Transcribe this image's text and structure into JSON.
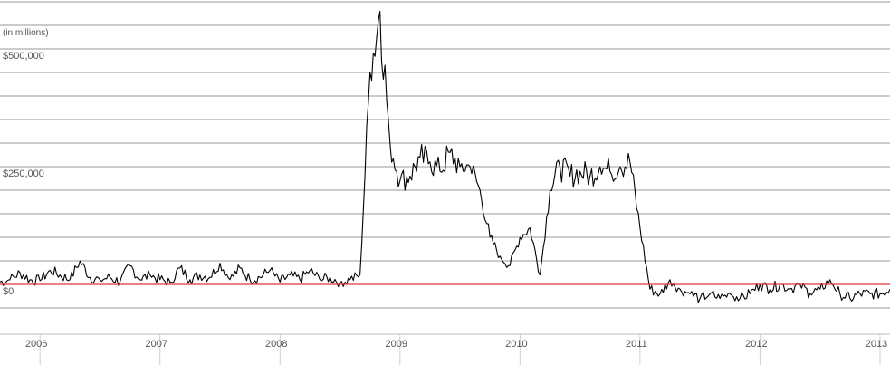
{
  "chart_data": {
    "type": "line",
    "title": "",
    "unit_note": "(in millions)",
    "xlabel": "",
    "ylabel": "",
    "x_range": [
      "2005-09",
      "2013-02"
    ],
    "ylim": [
      -100000,
      600000
    ],
    "x_ticks": [
      {
        "label": "2006",
        "x": "2006-01"
      },
      {
        "label": "2007",
        "x": "2007-01"
      },
      {
        "label": "2008",
        "x": "2008-01"
      },
      {
        "label": "2009",
        "x": "2009-01"
      },
      {
        "label": "2010",
        "x": "2010-01"
      },
      {
        "label": "2011",
        "x": "2011-01"
      },
      {
        "label": "2012",
        "x": "2012-01"
      },
      {
        "label": "2013",
        "x": "2013-01"
      }
    ],
    "y_ticks": [
      {
        "label": "$500,000",
        "value": 500000
      },
      {
        "label": "$250,000",
        "value": 250000
      },
      {
        "label": "$0",
        "value": 0
      }
    ],
    "gridlines": [
      -50000,
      0,
      50000,
      100000,
      150000,
      200000,
      250000,
      300000,
      350000,
      400000,
      450000,
      500000,
      550000,
      600000
    ],
    "zero_line_color": "#e0303a",
    "series_color": "#000000",
    "grid": true,
    "legend": "none",
    "series": [
      {
        "x": [
          "2005-09",
          "2005-10",
          "2005-11",
          "2005-12",
          "2006-01",
          "2006-02",
          "2006-03",
          "2006-04",
          "2006-05",
          "2006-06",
          "2006-07",
          "2006-08",
          "2006-09",
          "2006-10",
          "2006-11",
          "2006-12",
          "2007-01",
          "2007-02",
          "2007-03",
          "2007-04",
          "2007-05",
          "2007-06",
          "2007-07",
          "2007-08",
          "2007-09",
          "2007-10",
          "2007-11",
          "2007-12",
          "2008-01",
          "2008-02",
          "2008-03",
          "2008-04",
          "2008-05",
          "2008-06",
          "2008-07",
          "2008-08",
          "2008-09",
          "2008-10",
          "2008-11",
          "2008-12",
          "2009-01",
          "2009-02",
          "2009-03",
          "2009-04",
          "2009-05",
          "2009-06",
          "2009-07",
          "2009-08",
          "2009-09",
          "2009-10",
          "2009-11",
          "2009-12",
          "2010-01",
          "2010-02",
          "2010-03",
          "2010-04",
          "2010-05",
          "2010-06",
          "2010-07",
          "2010-08",
          "2010-09",
          "2010-10",
          "2010-11",
          "2010-12",
          "2011-01",
          "2011-02",
          "2011-03",
          "2011-04",
          "2011-05",
          "2011-06",
          "2011-07",
          "2011-08",
          "2011-09",
          "2011-10",
          "2011-11",
          "2011-12",
          "2012-01",
          "2012-02",
          "2012-03",
          "2012-04",
          "2012-05",
          "2012-06",
          "2012-07",
          "2012-08",
          "2012-09",
          "2012-10",
          "2012-11",
          "2012-12",
          "2013-01",
          "2013-02"
        ],
        "values": [
          5000,
          10000,
          25000,
          10000,
          8000,
          30000,
          20000,
          10000,
          50000,
          15000,
          10000,
          15000,
          5000,
          40000,
          10000,
          20000,
          10000,
          5000,
          35000,
          10000,
          20000,
          15000,
          45000,
          10000,
          35000,
          10000,
          15000,
          30000,
          5000,
          20000,
          10000,
          30000,
          10000,
          15000,
          5000,
          10000,
          20000,
          450000,
          580000,
          300000,
          220000,
          230000,
          270000,
          260000,
          240000,
          280000,
          250000,
          250000,
          200000,
          100000,
          60000,
          40000,
          100000,
          120000,
          20000,
          200000,
          250000,
          230000,
          240000,
          230000,
          250000,
          240000,
          250000,
          260000,
          120000,
          -10000,
          -20000,
          10000,
          -10000,
          -20000,
          -30000,
          -20000,
          -30000,
          -20000,
          -30000,
          -20000,
          0,
          -10000,
          0,
          -10000,
          0,
          -20000,
          -10000,
          10000,
          -20000,
          -30000,
          -20000,
          -20000,
          -20000,
          -10000
        ]
      }
    ]
  }
}
